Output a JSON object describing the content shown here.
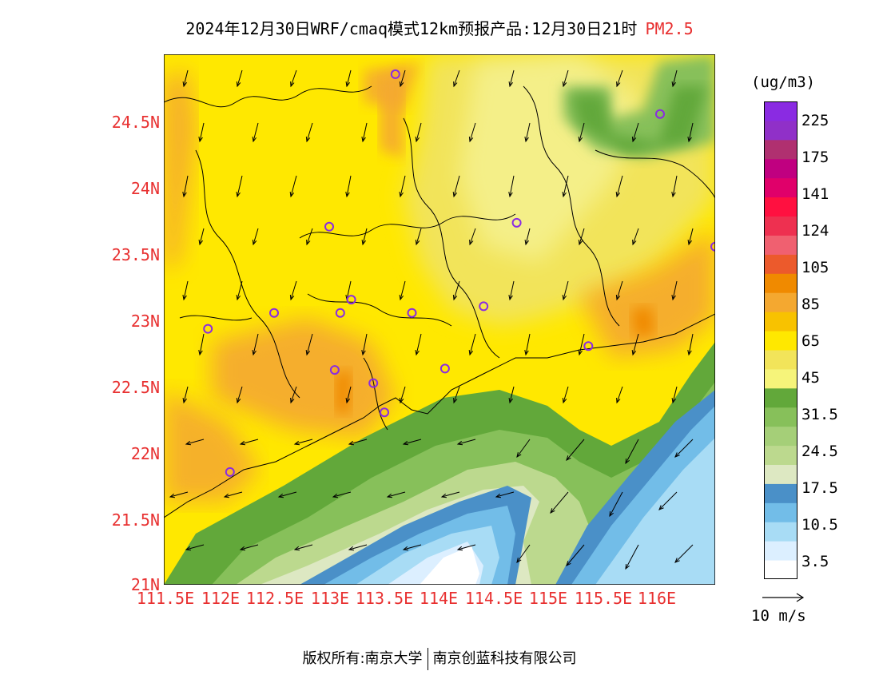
{
  "header": {
    "title": "2024年12月30日WRF/cmaq模式12km预报产品:12月30日21时",
    "variable": "PM2.5"
  },
  "map": {
    "lat_labels": [
      "24.5N",
      "24N",
      "23.5N",
      "23N",
      "22.5N",
      "22N",
      "21.5N",
      "21N"
    ],
    "lon_labels": [
      "111.5E",
      "112E",
      "112.5E",
      "113E",
      "113.5E",
      "114E",
      "114.5E",
      "115E",
      "115.5E",
      "116E"
    ],
    "colors": {
      "coastline": "#000000",
      "station_marker": "#8a2be2"
    },
    "stations": [
      {
        "lon": 113.6,
        "lat": 24.85
      },
      {
        "lon": 113.0,
        "lat": 23.7
      },
      {
        "lon": 114.7,
        "lat": 23.73
      },
      {
        "lon": 116.0,
        "lat": 24.55
      },
      {
        "lon": 116.5,
        "lat": 23.55
      },
      {
        "lon": 112.5,
        "lat": 23.05
      },
      {
        "lon": 111.9,
        "lat": 22.93
      },
      {
        "lon": 113.1,
        "lat": 23.05
      },
      {
        "lon": 113.2,
        "lat": 23.15
      },
      {
        "lon": 113.75,
        "lat": 23.05
      },
      {
        "lon": 114.4,
        "lat": 23.1
      },
      {
        "lon": 115.35,
        "lat": 22.8
      },
      {
        "lon": 113.05,
        "lat": 22.62
      },
      {
        "lon": 113.4,
        "lat": 22.52
      },
      {
        "lon": 114.05,
        "lat": 22.63
      },
      {
        "lon": 113.5,
        "lat": 22.3
      },
      {
        "lon": 112.1,
        "lat": 21.85
      }
    ]
  },
  "colorbar": {
    "units": "(ug/m3)",
    "colors": [
      "#ffffff",
      "#dcefff",
      "#a8dcf5",
      "#72bde8",
      "#4a90c8",
      "#dde8c2",
      "#bcd98e",
      "#a5cf78",
      "#87c05a",
      "#62a83a",
      "#f6f47a",
      "#f2e45a",
      "#ffe800",
      "#f8c200",
      "#f4a830",
      "#f08a00",
      "#ec5a2c",
      "#f06070",
      "#ee3050",
      "#ff1040",
      "#e0006a",
      "#c00080",
      "#b03070",
      "#9030c8",
      "#8a2be2"
    ],
    "labels": [
      "225",
      "175",
      "141",
      "124",
      "105",
      "85",
      "65",
      "45",
      "31.5",
      "24.5",
      "17.5",
      "10.5",
      "3.5"
    ]
  },
  "wind_reference": "10 m/s",
  "footer": {
    "left": "版权所有:南京大学",
    "right": "南京创蓝科技有限公司"
  }
}
